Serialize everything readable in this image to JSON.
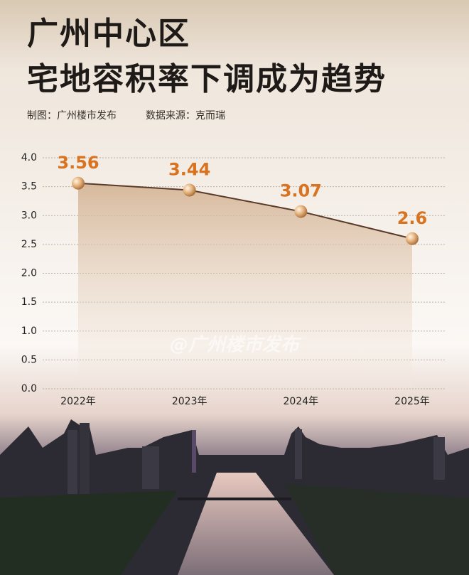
{
  "chart_data": {
    "type": "line",
    "title": [
      "广州中心区",
      "宅地容积率下调成为趋势"
    ],
    "subtitle": [
      "制图：广州楼市发布",
      "数据来源：克而瑞"
    ],
    "watermark": "@广州楼市发布",
    "categories": [
      "2022年",
      "2023年",
      "2024年",
      "2025年"
    ],
    "values": [
      3.56,
      3.44,
      3.07,
      2.6
    ],
    "color": "#5a3a28",
    "label_color": "#d9731f",
    "ylim": [
      0,
      4
    ],
    "yticks": [
      {
        "value": 0,
        "label": "0.0"
      },
      0.5,
      {
        "value": 1,
        "label": "1.0"
      },
      1.5,
      {
        "value": 2,
        "label": "2.0"
      },
      2.5,
      {
        "value": 3,
        "label": "3.0"
      },
      3.5,
      {
        "value": 4,
        "label": "4.0"
      }
    ],
    "grid": true
  }
}
